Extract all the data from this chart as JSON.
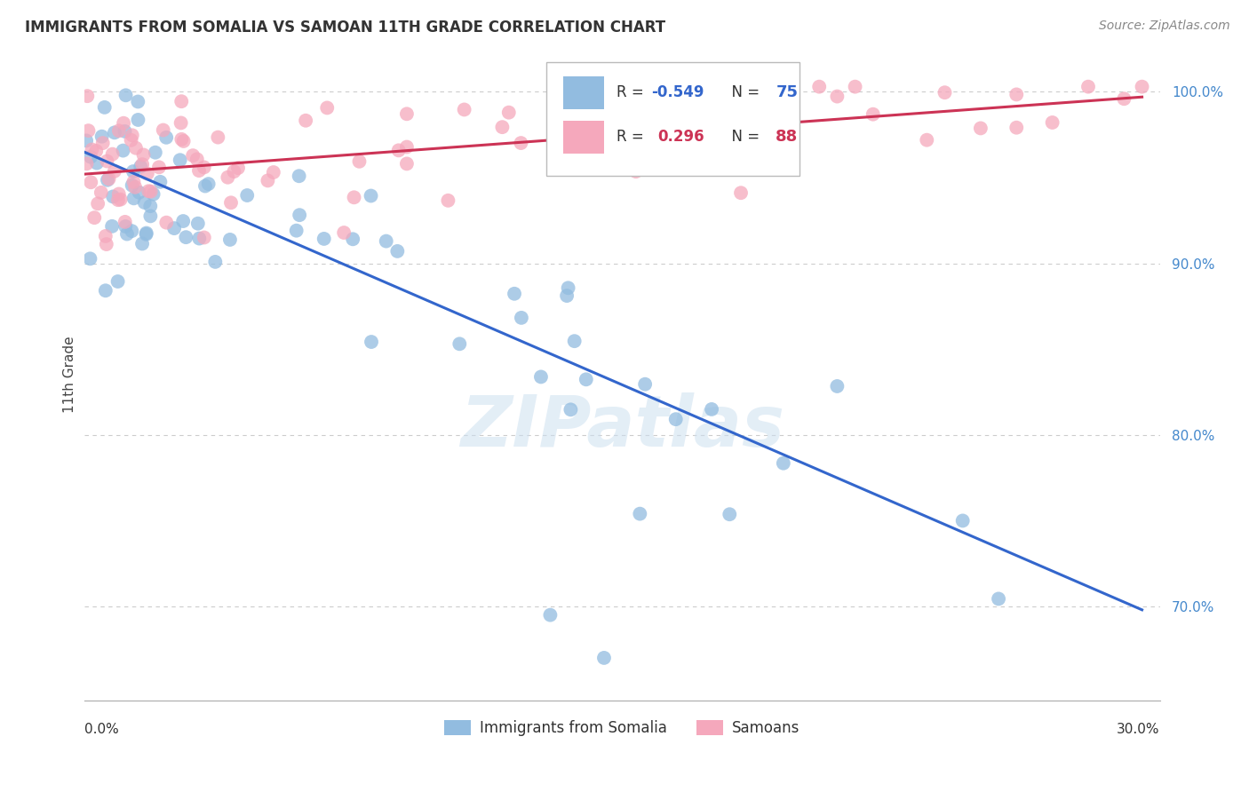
{
  "title": "IMMIGRANTS FROM SOMALIA VS SAMOAN 11TH GRADE CORRELATION CHART",
  "source": "Source: ZipAtlas.com",
  "ylabel": "11th Grade",
  "x_min": 0.0,
  "x_max": 0.3,
  "y_min": 0.645,
  "y_max": 1.025,
  "blue_R": -0.549,
  "blue_N": 75,
  "pink_R": 0.296,
  "pink_N": 88,
  "blue_color": "#92bce0",
  "pink_color": "#f5a8bc",
  "blue_line_color": "#3366cc",
  "pink_line_color": "#cc3355",
  "grid_color": "#cccccc",
  "yticks": [
    0.7,
    0.8,
    0.9,
    1.0
  ],
  "ytick_labels": [
    "70.0%",
    "80.0%",
    "90.0%",
    "100.0%"
  ],
  "blue_line_x0": 0.0,
  "blue_line_y0": 0.965,
  "blue_line_x1": 0.295,
  "blue_line_y1": 0.698,
  "pink_line_x0": 0.0,
  "pink_line_y0": 0.952,
  "pink_line_x1": 0.295,
  "pink_line_y1": 0.997,
  "watermark_text": "ZIPatlas",
  "legend_blue_label": "Immigrants from Somalia",
  "legend_pink_label": "Samoans",
  "title_fontsize": 12,
  "source_fontsize": 10,
  "ytick_fontsize": 11,
  "ylabel_fontsize": 11
}
